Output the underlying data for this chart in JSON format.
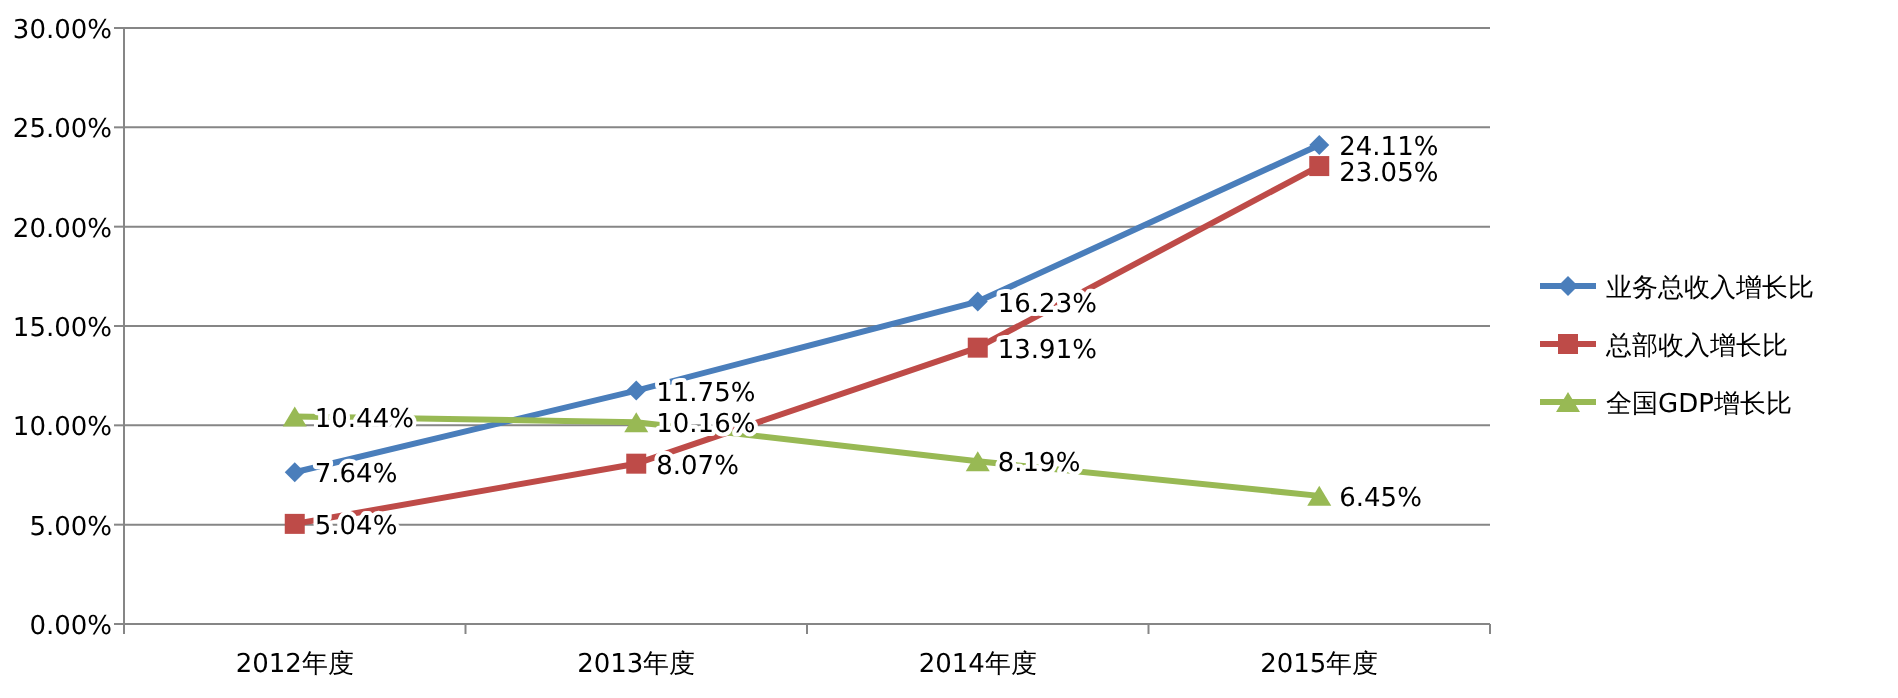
{
  "chart_data": {
    "type": "line",
    "categories": [
      "2012年度",
      "2013年度",
      "2014年度",
      "2015年度"
    ],
    "series": [
      {
        "name": "业务总收入增长比",
        "color": "#4a7ebb",
        "marker": "diamond",
        "values": [
          7.64,
          11.75,
          16.23,
          24.11
        ],
        "value_labels": [
          "7.64%",
          "11.75%",
          "16.23%",
          "24.11%"
        ]
      },
      {
        "name": "总部收入增长比",
        "color": "#be4b48",
        "marker": "square",
        "values": [
          5.04,
          8.07,
          13.91,
          23.05
        ],
        "value_labels": [
          "5.04%",
          "8.07%",
          "13.91%",
          "23.05%"
        ]
      },
      {
        "name": "全国GDP增长比",
        "color": "#98b954",
        "marker": "triangle",
        "values": [
          10.44,
          10.16,
          8.19,
          6.45
        ],
        "value_labels": [
          "10.44%",
          "10.16%",
          "8.19%",
          "6.45%"
        ]
      }
    ],
    "ylim": [
      0,
      30
    ],
    "yticks": [
      {
        "value": 0,
        "label": "0.00%"
      },
      {
        "value": 5,
        "label": "5.00%"
      },
      {
        "value": 10,
        "label": "10.00%"
      },
      {
        "value": 15,
        "label": "15.00%"
      },
      {
        "value": 20,
        "label": "20.00%"
      },
      {
        "value": 25,
        "label": "25.00%"
      },
      {
        "value": 30,
        "label": "30.00%"
      }
    ],
    "grid": "y",
    "legend": "right"
  }
}
